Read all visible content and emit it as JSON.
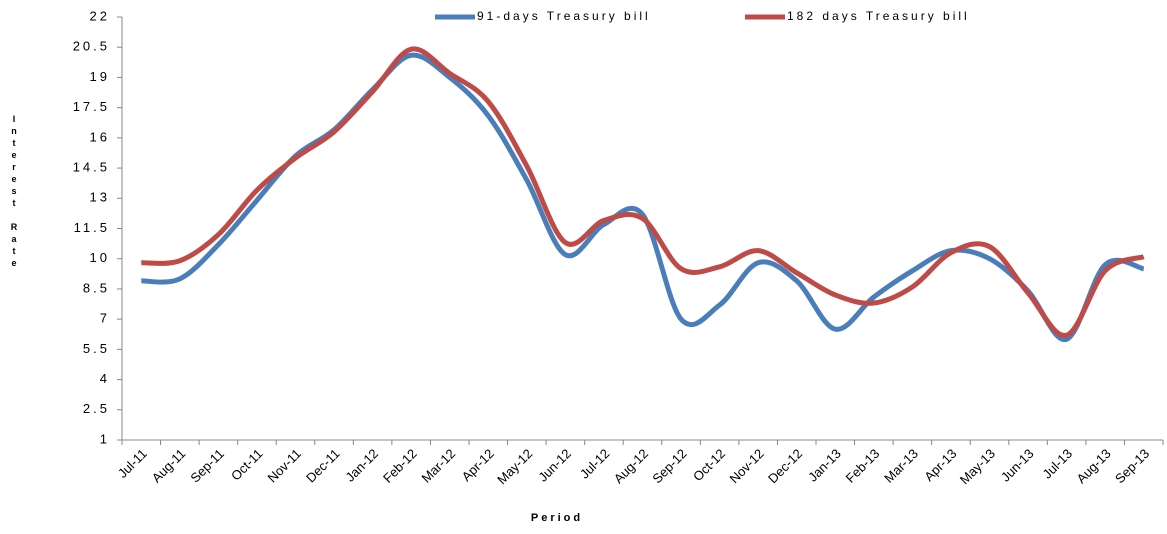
{
  "chart_data": {
    "type": "line",
    "x_label": "Period",
    "y_label": "Interest Rate",
    "categories": [
      "Jul-11",
      "Aug-11",
      "Sep-11",
      "Oct-11",
      "Nov-11",
      "Dec-11",
      "Jan-12",
      "Feb-12",
      "Mar-12",
      "Apr-12",
      "May-12",
      "Jun-12",
      "Jul-12",
      "Aug-12",
      "Sep-12",
      "Oct-12",
      "Nov-12",
      "Dec-12",
      "Jan-13",
      "Feb-13",
      "Mar-13",
      "Apr-13",
      "May-13",
      "Jun-13",
      "Jul-13",
      "Aug-13",
      "Sep-13"
    ],
    "series": [
      {
        "name": "91-days Treasury bill",
        "color": "#4a7ebb",
        "values": [
          8.9,
          9.0,
          10.7,
          12.9,
          15.1,
          16.4,
          18.4,
          20.1,
          19.0,
          17.1,
          13.9,
          10.2,
          11.7,
          12.2,
          7.0,
          7.7,
          9.8,
          8.9,
          6.5,
          8.1,
          9.4,
          10.4,
          10.0,
          8.4,
          6.0,
          9.7,
          9.5
        ]
      },
      {
        "name": "182 days Treasury bill",
        "color": "#be4b48",
        "values": [
          9.8,
          9.9,
          11.2,
          13.4,
          15.0,
          16.3,
          18.3,
          20.4,
          19.2,
          17.8,
          14.6,
          10.8,
          11.9,
          12.0,
          9.5,
          9.6,
          10.4,
          9.3,
          8.2,
          7.8,
          8.6,
          10.3,
          10.6,
          8.3,
          6.2,
          9.4,
          10.1
        ]
      }
    ],
    "ylim": [
      1,
      22
    ],
    "yticks": [
      1,
      2.5,
      4,
      5.5,
      7,
      8.5,
      10,
      11.5,
      13,
      14.5,
      16,
      17.5,
      19,
      20.5,
      22
    ],
    "legend": "top"
  }
}
